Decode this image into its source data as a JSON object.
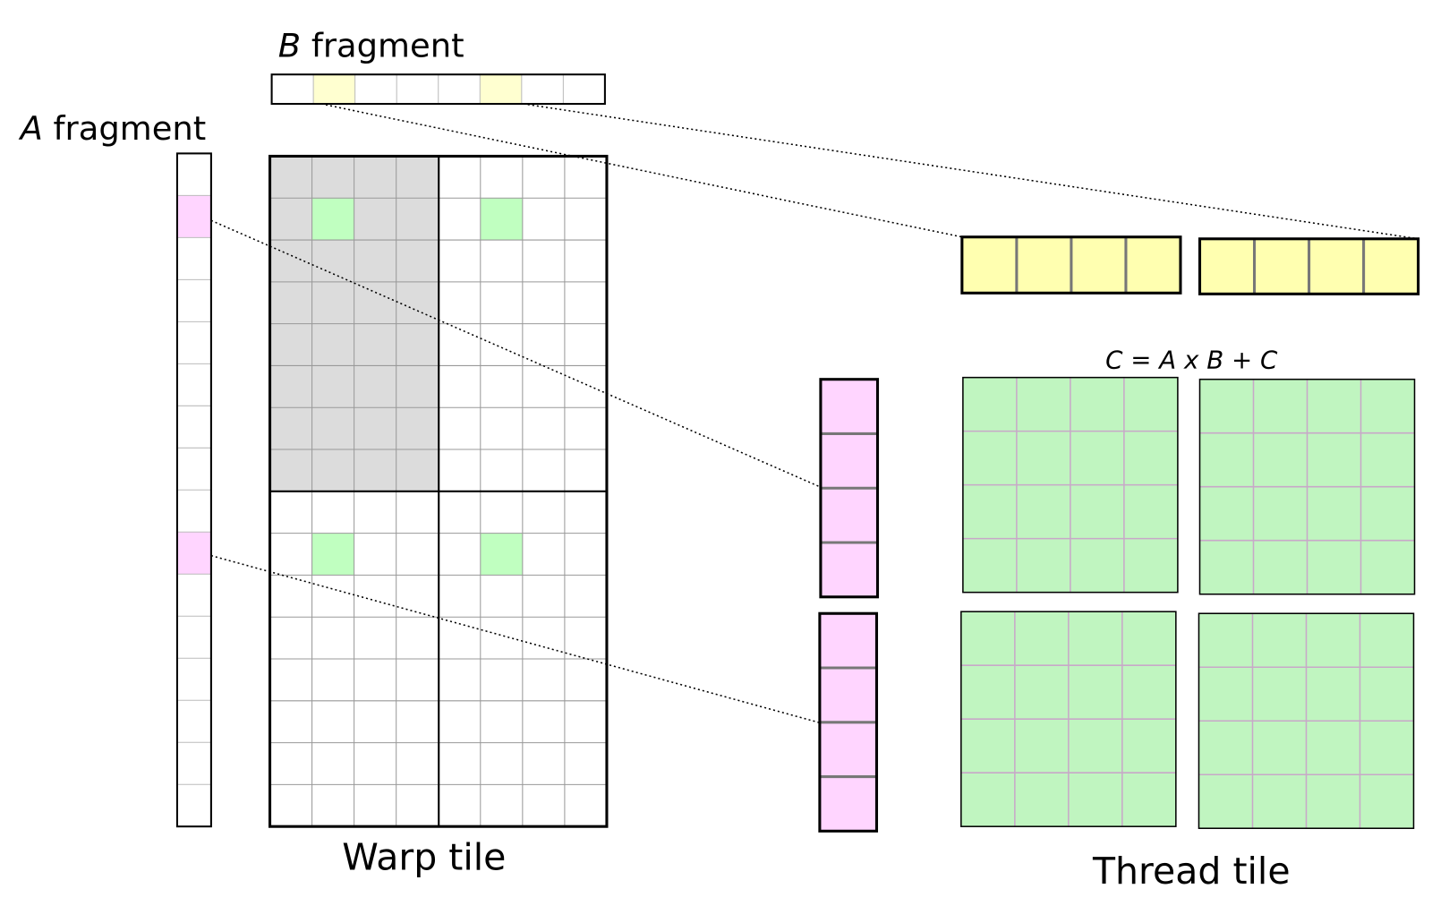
{
  "labels": {
    "b_fragment": {
      "symbol": "B",
      "word": "fragment"
    },
    "a_fragment": {
      "symbol": "A",
      "word": "fragment"
    },
    "warp_tile": "Warp tile",
    "thread_tile": "Thread tile",
    "equation": "C = A x B + C"
  }
}
